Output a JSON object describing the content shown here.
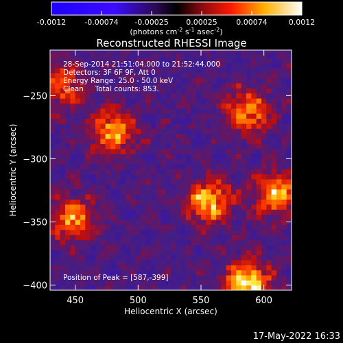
{
  "colorbar": {
    "ticks": [
      "-0.0012",
      "-0.00074",
      "-0.00025",
      "0.00025",
      "0.00074",
      "0.0012"
    ],
    "unit_parts": [
      "(photons cm",
      "-2",
      " s",
      "-1",
      " asec",
      "-2",
      ")"
    ]
  },
  "title": "Reconstructed RHESSI Image",
  "info": {
    "time_range": "28-Sep-2014 21:51:04.000 to 21:52:44.000",
    "detectors": "Detectors: 3F 6F 9F, Att 0",
    "energy": "Energy Range: 25.0 - 50.0 keV",
    "clean": "Clean     Total counts: 853.",
    "peak": "Position of Peak = [587,-399]"
  },
  "timestamp": "17-May-2022 16:33",
  "chart_data": {
    "type": "heatmap",
    "title": "Reconstructed RHESSI Image",
    "xlabel": "Heliocentric X (arcsec)",
    "ylabel": "Heliocentric Y (arcsec)",
    "xlim": [
      430,
      622
    ],
    "ylim": [
      -404,
      -214
    ],
    "x_ticks": [
      450,
      500,
      550,
      600
    ],
    "y_ticks": [
      -250,
      -300,
      -350,
      -400
    ],
    "color_range": [
      -0.0012,
      0.0012
    ],
    "colormap": "blue-purple-red-yellow-white",
    "peak_position": [
      587,
      -399
    ],
    "sources": [
      {
        "x": 440,
        "y": -242,
        "strength": 0.00065
      },
      {
        "x": 480,
        "y": -278,
        "strength": 0.0009
      },
      {
        "x": 557,
        "y": -333,
        "strength": 0.001
      },
      {
        "x": 587,
        "y": -262,
        "strength": 0.00085
      },
      {
        "x": 448,
        "y": -347,
        "strength": 0.0008
      },
      {
        "x": 610,
        "y": -328,
        "strength": 0.0009
      },
      {
        "x": 587,
        "y": -399,
        "strength": 0.0012
      }
    ]
  }
}
